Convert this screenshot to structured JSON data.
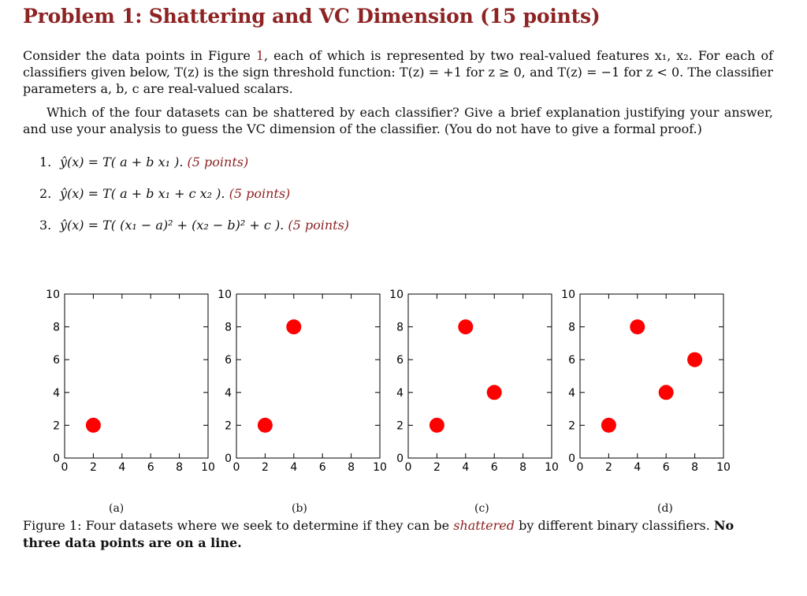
{
  "problem": {
    "title": "Problem 1: Shattering and VC Dimension (15 points)",
    "intro_1": "Consider the data points in Figure ",
    "intro_ref": "1",
    "intro_2": ", each of which is represented by two real-valued features x₁, x₂. For each of classifiers given below, T(z) is the sign threshold function: T(z) = +1 for z ≥ 0, and T(z) = −1 for z < 0. The classifier parameters a, b, c are real-valued scalars.",
    "question": "Which of the four datasets can be shattered by each classifier? Give a brief explanation justifying your answer, and use your analysis to guess the VC dimension of the classifier. (You do not have to give a formal proof.)",
    "items": [
      {
        "num": "1.",
        "formula": "ŷ(x) = T( a + b x₁ ).",
        "points": "(5 points)"
      },
      {
        "num": "2.",
        "formula": "ŷ(x) = T( a + b x₁ + c x₂ ).",
        "points": "(5 points)"
      },
      {
        "num": "3.",
        "formula": "ŷ(x) = T( (x₁ − a)² + (x₂ − b)² + c ).",
        "points": "(5 points)"
      }
    ]
  },
  "figure": {
    "caption_1": "Figure 1: Four datasets where we seek to determine if they can be ",
    "caption_em": "shattered",
    "caption_2": " by different binary classifiers. ",
    "caption_bold": "No three data points are on a line.",
    "point_color": "#ff0000"
  },
  "chart_data": [
    {
      "type": "scatter",
      "subtitle": "(a)",
      "xlim": [
        0,
        10
      ],
      "ylim": [
        0,
        10
      ],
      "xticks": [
        "0",
        "2",
        "4",
        "6",
        "8",
        "10"
      ],
      "yticks": [
        "0",
        "2",
        "4",
        "6",
        "8",
        "10"
      ],
      "points": [
        [
          2,
          2
        ]
      ]
    },
    {
      "type": "scatter",
      "subtitle": "(b)",
      "xlim": [
        0,
        10
      ],
      "ylim": [
        0,
        10
      ],
      "xticks": [
        "0",
        "2",
        "4",
        "6",
        "8",
        "10"
      ],
      "yticks": [
        "0",
        "2",
        "4",
        "6",
        "8",
        "10"
      ],
      "points": [
        [
          2,
          2
        ],
        [
          4,
          8
        ]
      ]
    },
    {
      "type": "scatter",
      "subtitle": "(c)",
      "xlim": [
        0,
        10
      ],
      "ylim": [
        0,
        10
      ],
      "xticks": [
        "0",
        "2",
        "4",
        "6",
        "8",
        "10"
      ],
      "yticks": [
        "0",
        "2",
        "4",
        "6",
        "8",
        "10"
      ],
      "points": [
        [
          2,
          2
        ],
        [
          4,
          8
        ],
        [
          6,
          4
        ]
      ]
    },
    {
      "type": "scatter",
      "subtitle": "(d)",
      "xlim": [
        0,
        10
      ],
      "ylim": [
        0,
        10
      ],
      "xticks": [
        "0",
        "2",
        "4",
        "6",
        "8",
        "10"
      ],
      "yticks": [
        "0",
        "2",
        "4",
        "6",
        "8",
        "10"
      ],
      "points": [
        [
          2,
          2
        ],
        [
          4,
          8
        ],
        [
          6,
          4
        ],
        [
          8,
          6
        ]
      ]
    }
  ]
}
